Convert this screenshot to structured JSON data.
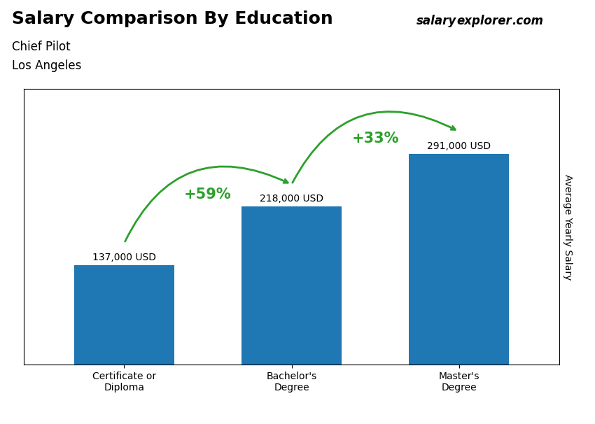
{
  "chart_data": {
    "type": "bar",
    "title": "Salary Comparison By Education",
    "subtitle": [
      "Chief Pilot",
      "Los Angeles"
    ],
    "ylabel": "Average Yearly Salary",
    "categories": [
      "Certificate or\nDiploma",
      "Bachelor's\nDegree",
      "Master's\nDegree"
    ],
    "values": [
      137000,
      218000,
      291000
    ],
    "value_labels": [
      "137,000 USD",
      "218,000 USD",
      "291,000 USD"
    ],
    "data_labels": true,
    "ylim": [
      0,
      380000
    ],
    "yticks": [],
    "tick_labels": "x",
    "grid": false,
    "annotations": [
      {
        "text": "+59%",
        "from": "Certificate or\nDiploma",
        "to": "Bachelor's\nDegree"
      },
      {
        "text": "+33%",
        "from": "Bachelor's\nDegree",
        "to": "Master's\nDegree"
      },
      {
        "text": "salary"
      },
      {
        "text": "explorer"
      },
      {
        "text": ".com"
      }
    ]
  }
}
